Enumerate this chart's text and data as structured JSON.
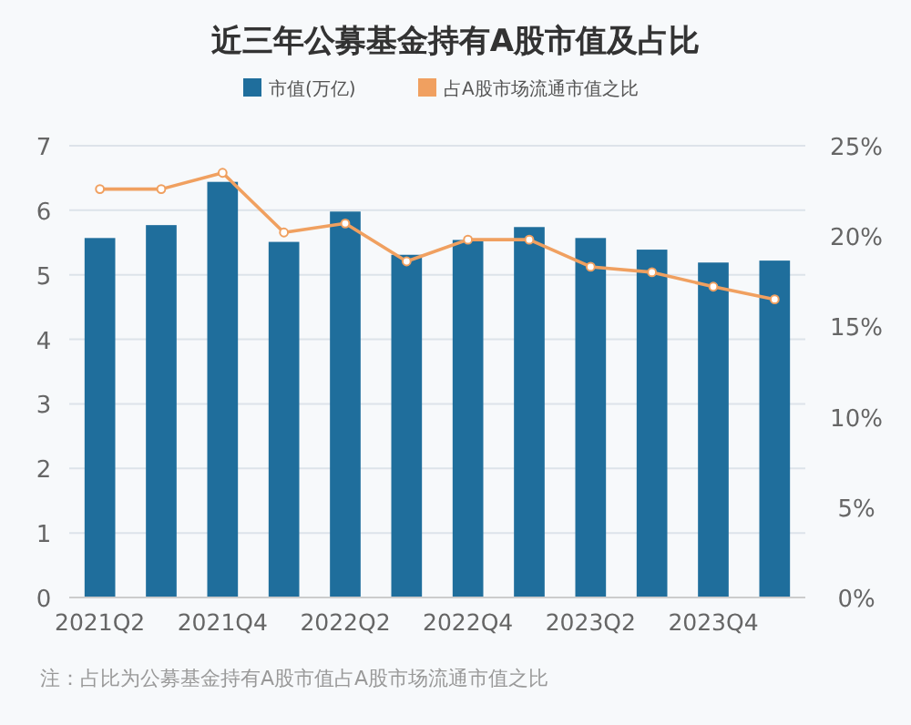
{
  "chart_data": {
    "type": "bar",
    "title": "近三年公募基金持有A股市值及占比",
    "categories": [
      "2021Q2",
      null,
      "2021Q4",
      null,
      "2022Q2",
      null,
      "2022Q4",
      null,
      "2023Q2",
      null,
      "2023Q4",
      null
    ],
    "series": [
      {
        "name": "市值(万亿)",
        "color": "#1f6e9c",
        "values": [
          5.57,
          5.77,
          6.44,
          5.51,
          5.98,
          5.31,
          5.54,
          5.74,
          5.57,
          5.39,
          5.19,
          5.22
        ]
      },
      {
        "name": "占A股市场流通市值之比",
        "type": "line",
        "axis": "y2",
        "color": "#f0a060",
        "marker": "circle",
        "values": [
          22.6,
          22.6,
          23.5,
          20.2,
          20.7,
          18.6,
          19.8,
          19.8,
          18.3,
          18.0,
          17.2,
          16.5
        ]
      }
    ],
    "ylim": [
      0,
      7
    ],
    "yticks": [
      0,
      1,
      2,
      3,
      4,
      5,
      6,
      7
    ],
    "y2lim": [
      0,
      25
    ],
    "y2ticks": [
      {
        "value": 0,
        "label": "0%"
      },
      {
        "value": 5,
        "label": "5%"
      },
      {
        "value": 10,
        "label": "10%"
      },
      {
        "value": 15,
        "label": "15%"
      },
      {
        "value": 20,
        "label": "20%"
      },
      {
        "value": 25,
        "label": "25%"
      }
    ],
    "grid": "y",
    "legend": "top",
    "annotations": [
      "注：占比为公募基金持有A股市值占A股市场流通市值之比"
    ]
  }
}
